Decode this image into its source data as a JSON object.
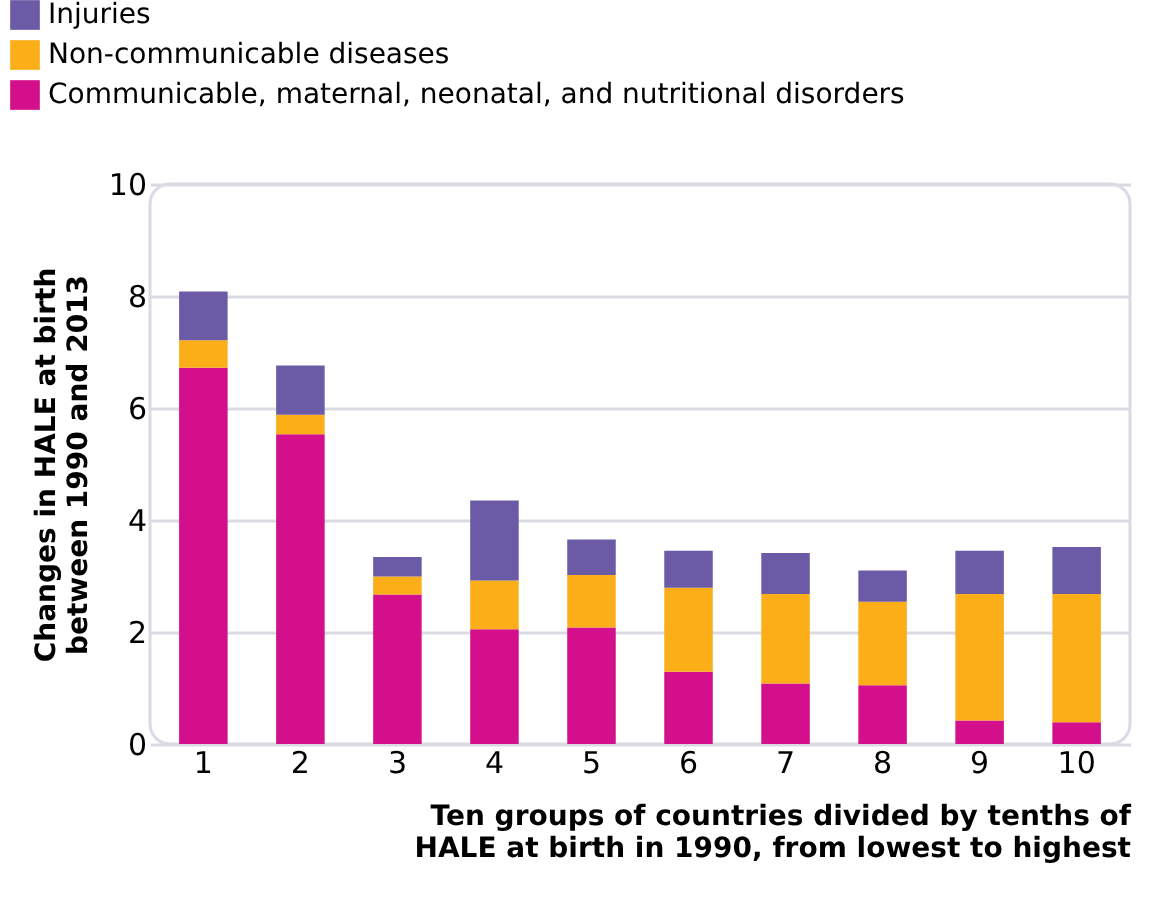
{
  "chart_data": {
    "type": "bar",
    "stacked": true,
    "xlabel": "Ten groups of countries divided by tenths of HALE at birth in 1990, from lowest to highest",
    "ylabel": "Changes in HALE at birth between 1990 and 2013",
    "categories": [
      "1",
      "2",
      "3",
      "4",
      "5",
      "6",
      "7",
      "8",
      "9",
      "10"
    ],
    "series": [
      {
        "name": "Communicable, maternal, neonatal, and nutritional disorders",
        "color": "#d40f8c",
        "values": [
          6.72,
          5.53,
          2.67,
          2.05,
          2.08,
          1.29,
          1.08,
          1.05,
          0.42,
          0.39
        ]
      },
      {
        "name": "Non-communicable diseases",
        "color": "#fbae17",
        "values": [
          0.49,
          0.35,
          0.32,
          0.87,
          0.94,
          1.5,
          1.6,
          1.49,
          2.26,
          2.29
        ]
      },
      {
        "name": "Injuries",
        "color": "#6b5aa6",
        "values": [
          0.87,
          0.88,
          0.35,
          1.43,
          0.63,
          0.66,
          0.73,
          0.56,
          0.77,
          0.84
        ]
      }
    ],
    "ylim": [
      0,
      10
    ],
    "yticks": [
      0,
      2,
      4,
      6,
      8,
      10
    ],
    "grid": "y",
    "legend": "top left"
  }
}
